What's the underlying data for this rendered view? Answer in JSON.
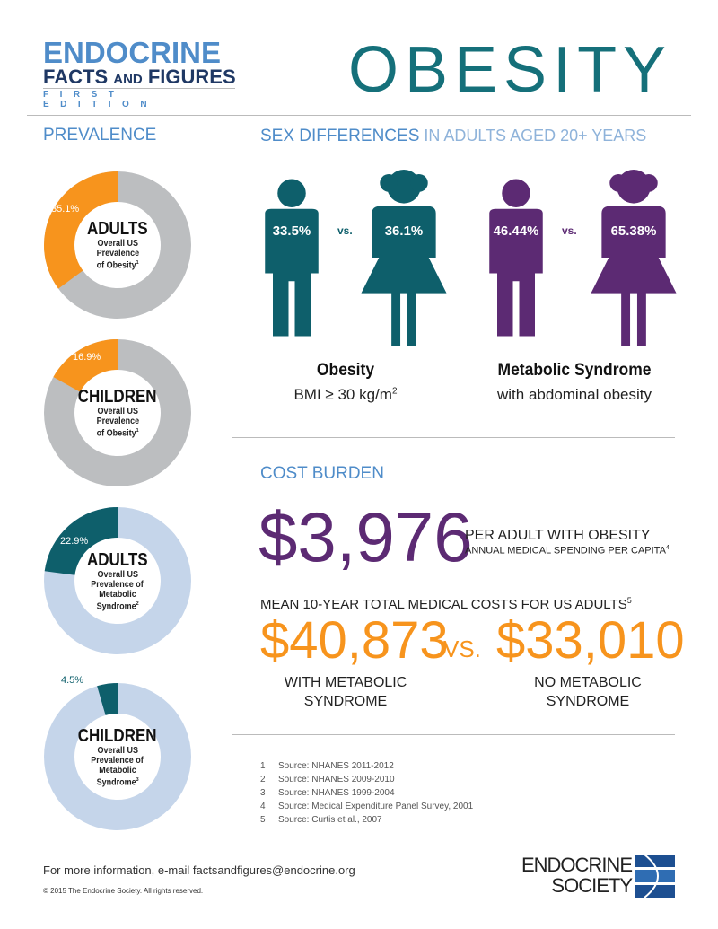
{
  "header": {
    "logo_line1": "ENDOCRINE",
    "logo_line2a": "FACTS ",
    "logo_line2b": "AND",
    "logo_line2c": " FIGURES",
    "logo_line3": "FIRST EDITION",
    "title": "OBESITY"
  },
  "prevalence": {
    "heading": "PREVALENCE"
  },
  "chart_data": [
    {
      "type": "pie",
      "group": "ADULTS",
      "label": "Overall US Prevalence of Obesity",
      "footnote": "1",
      "value": 35.1,
      "value_label": "35.1%",
      "color": "#f7941d",
      "rest_color": "#bcbec0"
    },
    {
      "type": "pie",
      "group": "CHILDREN",
      "label": "Overall US Prevalence of Obesity",
      "footnote": "1",
      "value": 16.9,
      "value_label": "16.9%",
      "color": "#f7941d",
      "rest_color": "#bcbec0"
    },
    {
      "type": "pie",
      "group": "ADULTS",
      "label": "Overall US Prevalence of Metabolic Syndrome",
      "footnote": "2",
      "value": 22.9,
      "value_label": "22.9%",
      "color": "#0e5f6b",
      "rest_color": "#c5d5ea"
    },
    {
      "type": "pie",
      "group": "CHILDREN",
      "label": "Overall US Prevalence of Metabolic Syndrome",
      "footnote": "3",
      "value": 4.5,
      "value_label": "4.5%",
      "color": "#0e5f6b",
      "rest_color": "#c5d5ea"
    }
  ],
  "donut_text": [
    {
      "l1": "Overall US",
      "l2": "Prevalence",
      "l3": "of Obesity"
    },
    {
      "l1": "Overall US",
      "l2": "Prevalence",
      "l3": "of Obesity"
    },
    {
      "l1": "Overall US",
      "l2": "Prevalence of",
      "l3": "Metabolic",
      "l4": "Syndrome"
    },
    {
      "l1": "Overall US",
      "l2": "Prevalence of",
      "l3": "Metabolic",
      "l4": "Syndrome"
    }
  ],
  "sex": {
    "heading_bold": "SEX DIFFERENCES",
    "heading_thin": " IN ADULTS AGED 20+ YEARS",
    "vs": "vs.",
    "obesity": {
      "male": "33.5%",
      "female": "36.1%",
      "label": "Obesity",
      "sub": "BMI ≥ 30 kg/m",
      "sup": "2",
      "color": "#0e5f6b"
    },
    "metabolic": {
      "male": "46.44%",
      "female": "65.38%",
      "label": "Metabolic Syndrome",
      "sub": "with abdominal obesity",
      "color": "#5c2a73"
    }
  },
  "cost": {
    "heading": "COST BURDEN",
    "amount": "$3,976",
    "per_adult": "PER ADULT WITH OBESITY",
    "annual": "ANNUAL MEDICAL SPENDING PER CAPITA",
    "annual_sup": "4",
    "mean": "MEAN 10-YEAR TOTAL MEDICAL COSTS FOR US ADULTS",
    "mean_sup": "5",
    "with_amt": "$40,873",
    "vs": "VS.",
    "no_amt": "$33,010",
    "with_l1": "WITH METABOLIC",
    "with_l2": "SYNDROME",
    "no_l1": "NO METABOLIC",
    "no_l2": "SYNDROME"
  },
  "sources": [
    {
      "n": "1",
      "text": "Source: NHANES 2011-2012"
    },
    {
      "n": "2",
      "text": "Source: NHANES 2009-2010"
    },
    {
      "n": "3",
      "text": "Source: NHANES 1999-2004"
    },
    {
      "n": "4",
      "text": "Source: Medical Expenditure Panel Survey, 2001"
    },
    {
      "n": "5",
      "text": "Source: Curtis et al., 2007"
    }
  ],
  "footer": {
    "info": "For more information, e-mail factsandfigures@endocrine.org",
    "copyright": "© 2015 The Endocrine Society. All rights reserved.",
    "logo1": "ENDOCRINE",
    "logo2": "SOCIETY"
  }
}
